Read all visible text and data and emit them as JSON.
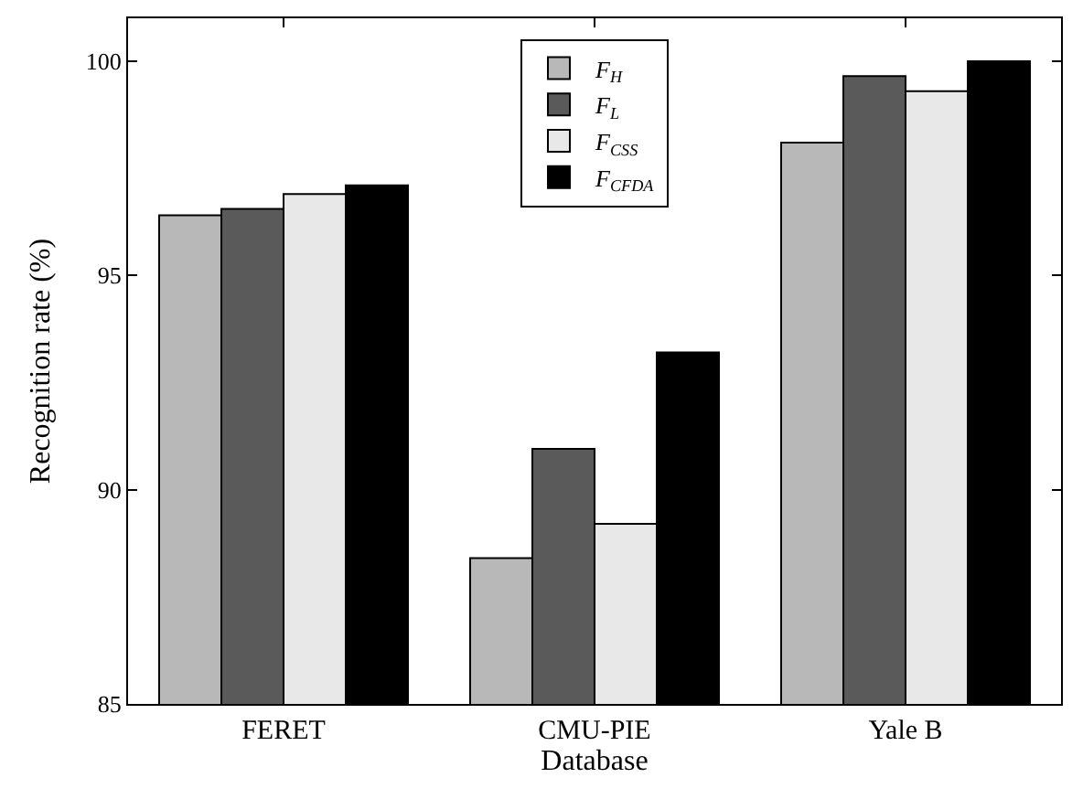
{
  "chart_data": {
    "type": "bar",
    "xlabel": "Database",
    "ylabel": "Recognition rate (%)",
    "categories": [
      "FERET",
      "CMU-PIE",
      "Yale B"
    ],
    "series": [
      {
        "name": "F$_{H}$",
        "color": "#b8b8b8",
        "values": [
          96.4,
          88.4,
          98.1
        ]
      },
      {
        "name": "F$_{L}$",
        "color": "#5a5a5a",
        "values": [
          96.55,
          90.95,
          99.65
        ]
      },
      {
        "name": "F$_{CSS}$",
        "color": "#e8e8e8",
        "values": [
          96.9,
          89.2,
          99.3
        ]
      },
      {
        "name": "F$_{CFDA}$",
        "color": "#000000",
        "values": [
          97.1,
          93.2,
          100
        ]
      }
    ],
    "ylim": [
      85,
      101
    ],
    "yticks": [
      85,
      90,
      95,
      100
    ],
    "legend": "top"
  }
}
